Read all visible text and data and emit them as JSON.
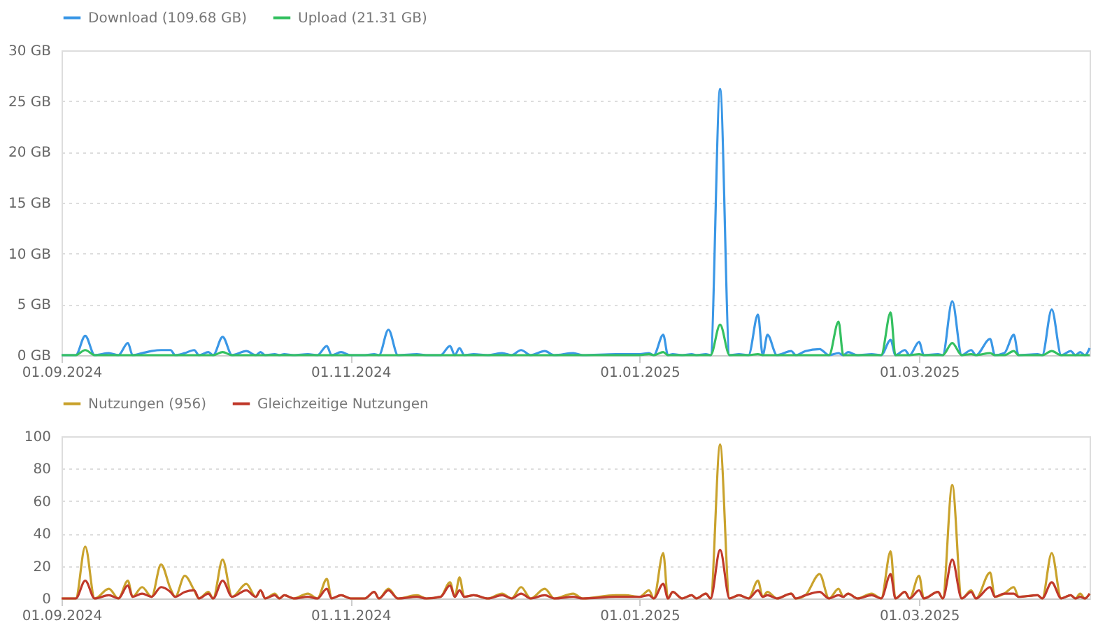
{
  "chart_data": [
    {
      "type": "line",
      "legend": "top",
      "grid": "y",
      "x": [
        "2024-09-01",
        "2024-09-04",
        "2024-09-06",
        "2024-09-08",
        "2024-09-11",
        "2024-09-13",
        "2024-09-15",
        "2024-09-16",
        "2024-09-18",
        "2024-09-20",
        "2024-09-22",
        "2024-09-24",
        "2024-09-25",
        "2024-09-27",
        "2024-09-29",
        "2024-09-30",
        "2024-10-02",
        "2024-10-03",
        "2024-10-05",
        "2024-10-07",
        "2024-10-10",
        "2024-10-12",
        "2024-10-13",
        "2024-10-14",
        "2024-10-16",
        "2024-10-17",
        "2024-10-18",
        "2024-10-20",
        "2024-10-23",
        "2024-10-25",
        "2024-10-27",
        "2024-10-28",
        "2024-10-30",
        "2024-11-01",
        "2024-11-04",
        "2024-11-06",
        "2024-11-07",
        "2024-11-09",
        "2024-11-11",
        "2024-11-15",
        "2024-11-17",
        "2024-11-20",
        "2024-11-22",
        "2024-11-23",
        "2024-11-24",
        "2024-11-25",
        "2024-11-27",
        "2024-11-30",
        "2024-12-03",
        "2024-12-05",
        "2024-12-07",
        "2024-12-09",
        "2024-12-12",
        "2024-12-14",
        "2024-12-18",
        "2024-12-20",
        "2024-12-27",
        "2024-12-29",
        "2025-01-01",
        "2025-01-03",
        "2025-01-04",
        "2025-01-06",
        "2025-01-07",
        "2025-01-08",
        "2025-01-10",
        "2025-01-12",
        "2025-01-13",
        "2025-01-15",
        "2025-01-16",
        "2025-01-18",
        "2025-01-20",
        "2025-01-22",
        "2025-01-24",
        "2025-01-26",
        "2025-01-27",
        "2025-01-28",
        "2025-01-30",
        "2025-02-02",
        "2025-02-03",
        "2025-02-05",
        "2025-02-08",
        "2025-02-10",
        "2025-02-12",
        "2025-02-13",
        "2025-02-14",
        "2025-02-16",
        "2025-02-19",
        "2025-02-21",
        "2025-02-23",
        "2025-02-24",
        "2025-02-26",
        "2025-02-27",
        "2025-03-01",
        "2025-03-02",
        "2025-03-05",
        "2025-03-06",
        "2025-03-08",
        "2025-03-10",
        "2025-03-12",
        "2025-03-13",
        "2025-03-16",
        "2025-03-17",
        "2025-03-19",
        "2025-03-21",
        "2025-03-22",
        "2025-03-26",
        "2025-03-27",
        "2025-03-29",
        "2025-03-31",
        "2025-04-02",
        "2025-04-03",
        "2025-04-04",
        "2025-04-05",
        "2025-04-06"
      ],
      "series": [
        {
          "name": "Download (109.68 GB)",
          "color": "#3a97e6",
          "values": [
            0,
            0,
            1.9,
            0,
            0.2,
            0,
            1.2,
            0,
            0.2,
            0.4,
            0.5,
            0.5,
            0,
            0.2,
            0.5,
            0,
            0.3,
            0,
            1.8,
            0,
            0.4,
            0,
            0.3,
            0,
            0.1,
            0,
            0.1,
            0,
            0.1,
            0,
            0.9,
            0,
            0.3,
            0,
            0,
            0.1,
            0,
            2.5,
            0,
            0.1,
            0,
            0,
            0.9,
            0,
            0.7,
            0,
            0.1,
            0,
            0.2,
            0,
            0.5,
            0,
            0.4,
            0,
            0.2,
            0,
            0.1,
            0.1,
            0.1,
            0.2,
            0,
            2.0,
            0,
            0.1,
            0,
            0.1,
            0,
            0.1,
            0,
            26.2,
            0,
            0.1,
            0,
            4.0,
            0,
            2.0,
            0,
            0.4,
            0,
            0.4,
            0.6,
            0,
            0.2,
            0,
            0.3,
            0,
            0.1,
            0,
            1.5,
            0,
            0.5,
            0,
            1.3,
            0,
            0.1,
            0,
            5.3,
            0,
            0.5,
            0,
            1.6,
            0,
            0.2,
            2.0,
            0,
            0.1,
            0,
            4.5,
            0,
            0.4,
            0,
            0.3,
            0,
            0.7
          ]
        },
        {
          "name": "Upload (21.31 GB)",
          "color": "#34c060",
          "values": [
            0,
            0,
            0.5,
            0,
            0,
            0,
            0,
            0,
            0,
            0,
            0,
            0,
            0,
            0,
            0,
            0,
            0,
            0,
            0.3,
            0,
            0,
            0,
            0,
            0,
            0,
            0,
            0,
            0,
            0,
            0,
            0,
            0,
            0,
            0,
            0,
            0,
            0,
            0,
            0,
            0,
            0,
            0,
            0,
            0,
            0,
            0,
            0,
            0,
            0,
            0,
            0,
            0,
            0,
            0,
            0,
            0,
            0,
            0,
            0,
            0.1,
            0,
            0.3,
            0,
            0,
            0,
            0,
            0,
            0,
            0,
            3.0,
            0,
            0,
            0,
            0.1,
            0,
            0,
            0,
            0,
            0,
            0,
            0,
            0,
            3.3,
            0,
            0,
            0,
            0,
            0,
            4.2,
            0,
            0,
            0,
            0.1,
            0,
            0,
            0,
            1.2,
            0,
            0.1,
            0,
            0.2,
            0,
            0,
            0.4,
            0,
            0,
            0,
            0.4,
            0,
            0,
            0,
            0,
            0,
            0
          ]
        }
      ],
      "xlim": [
        "2024-09-01",
        "2025-04-06"
      ],
      "xticks": [
        {
          "value": "2024-09-01",
          "label": "01.09.2024"
        },
        {
          "value": "2024-11-01",
          "label": "01.11.2024"
        },
        {
          "value": "2025-01-01",
          "label": "01.01.2025"
        },
        {
          "value": "2025-03-01",
          "label": "01.03.2025"
        }
      ],
      "ylim": [
        0,
        30
      ],
      "yticks": [
        {
          "value": 0,
          "label": "0 GB"
        },
        {
          "value": 5,
          "label": "5 GB"
        },
        {
          "value": 10,
          "label": "10 GB"
        },
        {
          "value": 15,
          "label": "15 GB"
        },
        {
          "value": 20,
          "label": "20 GB"
        },
        {
          "value": 25,
          "label": "25 GB"
        },
        {
          "value": 30,
          "label": "30 GB"
        }
      ]
    },
    {
      "type": "line",
      "legend": "top",
      "grid": "y",
      "x": [
        "2024-09-01",
        "2024-09-04",
        "2024-09-06",
        "2024-09-08",
        "2024-09-11",
        "2024-09-13",
        "2024-09-15",
        "2024-09-16",
        "2024-09-18",
        "2024-09-20",
        "2024-09-22",
        "2024-09-24",
        "2024-09-25",
        "2024-09-27",
        "2024-09-29",
        "2024-09-30",
        "2024-10-02",
        "2024-10-03",
        "2024-10-05",
        "2024-10-07",
        "2024-10-10",
        "2024-10-12",
        "2024-10-13",
        "2024-10-14",
        "2024-10-16",
        "2024-10-17",
        "2024-10-18",
        "2024-10-20",
        "2024-10-23",
        "2024-10-25",
        "2024-10-27",
        "2024-10-28",
        "2024-10-30",
        "2024-11-01",
        "2024-11-04",
        "2024-11-06",
        "2024-11-07",
        "2024-11-09",
        "2024-11-11",
        "2024-11-15",
        "2024-11-17",
        "2024-11-20",
        "2024-11-22",
        "2024-11-23",
        "2024-11-24",
        "2024-11-25",
        "2024-11-27",
        "2024-11-30",
        "2024-12-03",
        "2024-12-05",
        "2024-12-07",
        "2024-12-09",
        "2024-12-12",
        "2024-12-14",
        "2024-12-18",
        "2024-12-20",
        "2024-12-27",
        "2024-12-29",
        "2025-01-01",
        "2025-01-03",
        "2025-01-04",
        "2025-01-06",
        "2025-01-07",
        "2025-01-08",
        "2025-01-10",
        "2025-01-12",
        "2025-01-13",
        "2025-01-15",
        "2025-01-16",
        "2025-01-18",
        "2025-01-20",
        "2025-01-22",
        "2025-01-24",
        "2025-01-26",
        "2025-01-27",
        "2025-01-28",
        "2025-01-30",
        "2025-02-02",
        "2025-02-03",
        "2025-02-05",
        "2025-02-08",
        "2025-02-10",
        "2025-02-12",
        "2025-02-13",
        "2025-02-14",
        "2025-02-16",
        "2025-02-19",
        "2025-02-21",
        "2025-02-23",
        "2025-02-24",
        "2025-02-26",
        "2025-02-27",
        "2025-03-01",
        "2025-03-02",
        "2025-03-05",
        "2025-03-06",
        "2025-03-08",
        "2025-03-10",
        "2025-03-12",
        "2025-03-13",
        "2025-03-16",
        "2025-03-17",
        "2025-03-19",
        "2025-03-21",
        "2025-03-22",
        "2025-03-26",
        "2025-03-27",
        "2025-03-29",
        "2025-03-31",
        "2025-04-02",
        "2025-04-03",
        "2025-04-04",
        "2025-04-05",
        "2025-04-06"
      ],
      "series": [
        {
          "name": "Nutzungen (956)",
          "color": "#c9a22c",
          "values": [
            0,
            0,
            32,
            0,
            6,
            0,
            11,
            1,
            7,
            1,
            21,
            6,
            1,
            14,
            5,
            0,
            4,
            0,
            24,
            1,
            9,
            1,
            5,
            0,
            3,
            0,
            2,
            0,
            3,
            0,
            12,
            0,
            2,
            0,
            0,
            4,
            0,
            6,
            0,
            2,
            0,
            1,
            10,
            1,
            13,
            1,
            2,
            0,
            3,
            0,
            7,
            0,
            6,
            0,
            3,
            0,
            2,
            2,
            1,
            5,
            0,
            28,
            0,
            4,
            0,
            2,
            0,
            3,
            0,
            95,
            0,
            2,
            0,
            11,
            1,
            4,
            0,
            3,
            0,
            2,
            15,
            0,
            6,
            1,
            3,
            0,
            3,
            0,
            29,
            0,
            4,
            0,
            14,
            0,
            4,
            0,
            70,
            0,
            5,
            0,
            16,
            1,
            3,
            7,
            1,
            2,
            0,
            28,
            0,
            2,
            0,
            3,
            0,
            3
          ]
        },
        {
          "name": "Gleichzeitige Nutzungen",
          "color": "#c0392b",
          "values": [
            0,
            0,
            11,
            0,
            2,
            0,
            8,
            1,
            3,
            1,
            7,
            4,
            1,
            4,
            5,
            0,
            3,
            0,
            11,
            1,
            5,
            1,
            5,
            0,
            2,
            0,
            2,
            0,
            1,
            0,
            6,
            0,
            2,
            0,
            0,
            4,
            0,
            5,
            0,
            1,
            0,
            1,
            8,
            1,
            5,
            1,
            2,
            0,
            2,
            0,
            3,
            0,
            2,
            0,
            1,
            0,
            1,
            1,
            1,
            2,
            0,
            9,
            0,
            4,
            0,
            2,
            0,
            3,
            0,
            30,
            0,
            2,
            0,
            5,
            1,
            2,
            0,
            3,
            0,
            2,
            4,
            0,
            2,
            1,
            3,
            0,
            2,
            0,
            15,
            0,
            4,
            0,
            5,
            0,
            4,
            0,
            24,
            0,
            4,
            0,
            7,
            1,
            3,
            3,
            1,
            2,
            0,
            10,
            0,
            2,
            0,
            1,
            0,
            3
          ]
        }
      ],
      "xlim": [
        "2024-09-01",
        "2025-04-06"
      ],
      "xticks": [
        {
          "value": "2024-09-01",
          "label": "01.09.2024"
        },
        {
          "value": "2024-11-01",
          "label": "01.11.2024"
        },
        {
          "value": "2025-01-01",
          "label": "01.01.2025"
        },
        {
          "value": "2025-03-01",
          "label": "01.03.2025"
        }
      ],
      "ylim": [
        0,
        100
      ],
      "yticks": [
        0,
        20,
        40,
        60,
        80,
        100
      ]
    }
  ]
}
